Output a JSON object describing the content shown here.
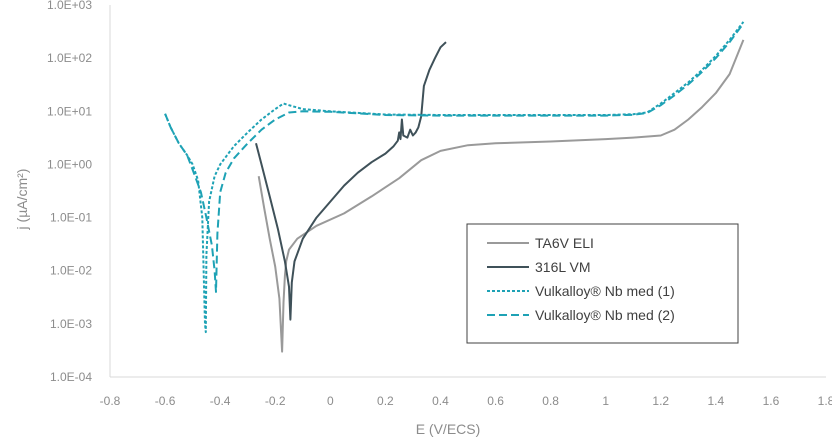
{
  "chart_data": {
    "type": "line",
    "xlabel": "E (V/ECS)",
    "ylabel": "j (µA/cm²)",
    "x_scale": "linear",
    "y_scale": "log",
    "xlim": [
      -0.8,
      1.8
    ],
    "ylim": [
      0.0001,
      1000
    ],
    "x_ticks": [
      -0.8,
      -0.6,
      -0.4,
      -0.2,
      0,
      0.2,
      0.4,
      0.6,
      0.8,
      1,
      1.2,
      1.4,
      1.6,
      1.8
    ],
    "x_tick_labels": [
      "-0.8",
      "-0.6",
      "-0.4",
      "-0.2",
      "0",
      "0.2",
      "0.4",
      "0.6",
      "0.8",
      "1",
      "1.2",
      "1.4",
      "1.6",
      "1.8"
    ],
    "y_ticks": [
      0.0001,
      0.001,
      0.01,
      0.1,
      1,
      10,
      100,
      1000
    ],
    "y_tick_labels": [
      "1.0E-04",
      "1.0E-03",
      "1.0E-02",
      "1.0E-01",
      "1.0E+00",
      "1.0E+01",
      "1.0E+02",
      "1.0E+03"
    ],
    "grid": false,
    "legend_position": "lower-right",
    "series": [
      {
        "name": "TA6V ELI",
        "color": "#9a9a9a",
        "dash": "solid",
        "points": [
          [
            -0.26,
            0.6
          ],
          [
            -0.24,
            0.15
          ],
          [
            -0.22,
            0.04
          ],
          [
            -0.2,
            0.012
          ],
          [
            -0.185,
            0.003
          ],
          [
            -0.175,
            0.0003
          ],
          [
            -0.17,
            0.0025
          ],
          [
            -0.165,
            0.008
          ],
          [
            -0.16,
            0.015
          ],
          [
            -0.15,
            0.025
          ],
          [
            -0.12,
            0.04
          ],
          [
            -0.05,
            0.07
          ],
          [
            0.05,
            0.12
          ],
          [
            0.15,
            0.25
          ],
          [
            0.25,
            0.55
          ],
          [
            0.33,
            1.2
          ],
          [
            0.4,
            1.8
          ],
          [
            0.5,
            2.3
          ],
          [
            0.6,
            2.5
          ],
          [
            0.8,
            2.7
          ],
          [
            1.0,
            3.0
          ],
          [
            1.1,
            3.2
          ],
          [
            1.2,
            3.5
          ],
          [
            1.25,
            4.5
          ],
          [
            1.3,
            7
          ],
          [
            1.35,
            12
          ],
          [
            1.4,
            22
          ],
          [
            1.45,
            50
          ],
          [
            1.5,
            220
          ]
        ]
      },
      {
        "name": "316L VM",
        "color": "#3f5159",
        "dash": "solid",
        "points": [
          [
            -0.27,
            2.5
          ],
          [
            -0.25,
            1.0
          ],
          [
            -0.22,
            0.25
          ],
          [
            -0.19,
            0.06
          ],
          [
            -0.165,
            0.015
          ],
          [
            -0.15,
            0.005
          ],
          [
            -0.145,
            0.0012
          ],
          [
            -0.14,
            0.006
          ],
          [
            -0.13,
            0.015
          ],
          [
            -0.1,
            0.04
          ],
          [
            -0.05,
            0.1
          ],
          [
            0.0,
            0.2
          ],
          [
            0.05,
            0.4
          ],
          [
            0.1,
            0.7
          ],
          [
            0.15,
            1.1
          ],
          [
            0.2,
            1.6
          ],
          [
            0.23,
            2.2
          ],
          [
            0.245,
            2.8
          ],
          [
            0.25,
            4
          ],
          [
            0.255,
            3
          ],
          [
            0.26,
            7
          ],
          [
            0.265,
            3.5
          ],
          [
            0.28,
            3.2
          ],
          [
            0.29,
            4.5
          ],
          [
            0.3,
            3.5
          ],
          [
            0.31,
            4
          ],
          [
            0.32,
            5
          ],
          [
            0.33,
            8
          ],
          [
            0.34,
            30
          ],
          [
            0.36,
            60
          ],
          [
            0.38,
            100
          ],
          [
            0.4,
            160
          ],
          [
            0.42,
            200
          ]
        ]
      },
      {
        "name": "Vulkalloy® Nb med (1)",
        "color": "#1ea2b5",
        "dash": "dotted",
        "points": [
          [
            -0.6,
            9
          ],
          [
            -0.58,
            5
          ],
          [
            -0.55,
            2.5
          ],
          [
            -0.52,
            1.5
          ],
          [
            -0.5,
            1.0
          ],
          [
            -0.48,
            0.5
          ],
          [
            -0.465,
            0.1
          ],
          [
            -0.455,
            0.001
          ],
          [
            -0.452,
            0.0007
          ],
          [
            -0.45,
            0.02
          ],
          [
            -0.44,
            0.2
          ],
          [
            -0.42,
            0.6
          ],
          [
            -0.4,
            1.0
          ],
          [
            -0.35,
            2.2
          ],
          [
            -0.3,
            4
          ],
          [
            -0.25,
            7
          ],
          [
            -0.2,
            11
          ],
          [
            -0.17,
            14
          ],
          [
            -0.15,
            13
          ],
          [
            -0.1,
            11
          ],
          [
            0,
            10
          ],
          [
            0.2,
            8.7
          ],
          [
            0.4,
            8.5
          ],
          [
            0.6,
            8.5
          ],
          [
            0.8,
            8.5
          ],
          [
            1.0,
            8.5
          ],
          [
            1.1,
            8.8
          ],
          [
            1.15,
            9.5
          ],
          [
            1.2,
            14
          ],
          [
            1.25,
            22
          ],
          [
            1.3,
            35
          ],
          [
            1.35,
            60
          ],
          [
            1.4,
            110
          ],
          [
            1.45,
            220
          ],
          [
            1.5,
            480
          ]
        ]
      },
      {
        "name": "Vulkalloy® Nb med (2)",
        "color": "#1ea2b5",
        "dash": "dashed",
        "points": [
          [
            -0.6,
            9
          ],
          [
            -0.58,
            5
          ],
          [
            -0.55,
            2.5
          ],
          [
            -0.52,
            1.5
          ],
          [
            -0.5,
            0.8
          ],
          [
            -0.47,
            0.3
          ],
          [
            -0.45,
            0.1
          ],
          [
            -0.43,
            0.03
          ],
          [
            -0.42,
            0.01
          ],
          [
            -0.415,
            0.004
          ],
          [
            -0.41,
            0.05
          ],
          [
            -0.4,
            0.3
          ],
          [
            -0.38,
            0.7
          ],
          [
            -0.35,
            1.3
          ],
          [
            -0.3,
            2.5
          ],
          [
            -0.25,
            4.5
          ],
          [
            -0.2,
            7
          ],
          [
            -0.15,
            9.5
          ],
          [
            -0.1,
            10
          ],
          [
            0,
            9.8
          ],
          [
            0.2,
            8.5
          ],
          [
            0.4,
            8.3
          ],
          [
            0.6,
            8.3
          ],
          [
            0.8,
            8.3
          ],
          [
            1.0,
            8.3
          ],
          [
            1.1,
            8.6
          ],
          [
            1.15,
            9.3
          ],
          [
            1.2,
            13
          ],
          [
            1.25,
            20
          ],
          [
            1.3,
            32
          ],
          [
            1.35,
            55
          ],
          [
            1.4,
            100
          ],
          [
            1.45,
            200
          ],
          [
            1.5,
            450
          ]
        ]
      }
    ]
  }
}
